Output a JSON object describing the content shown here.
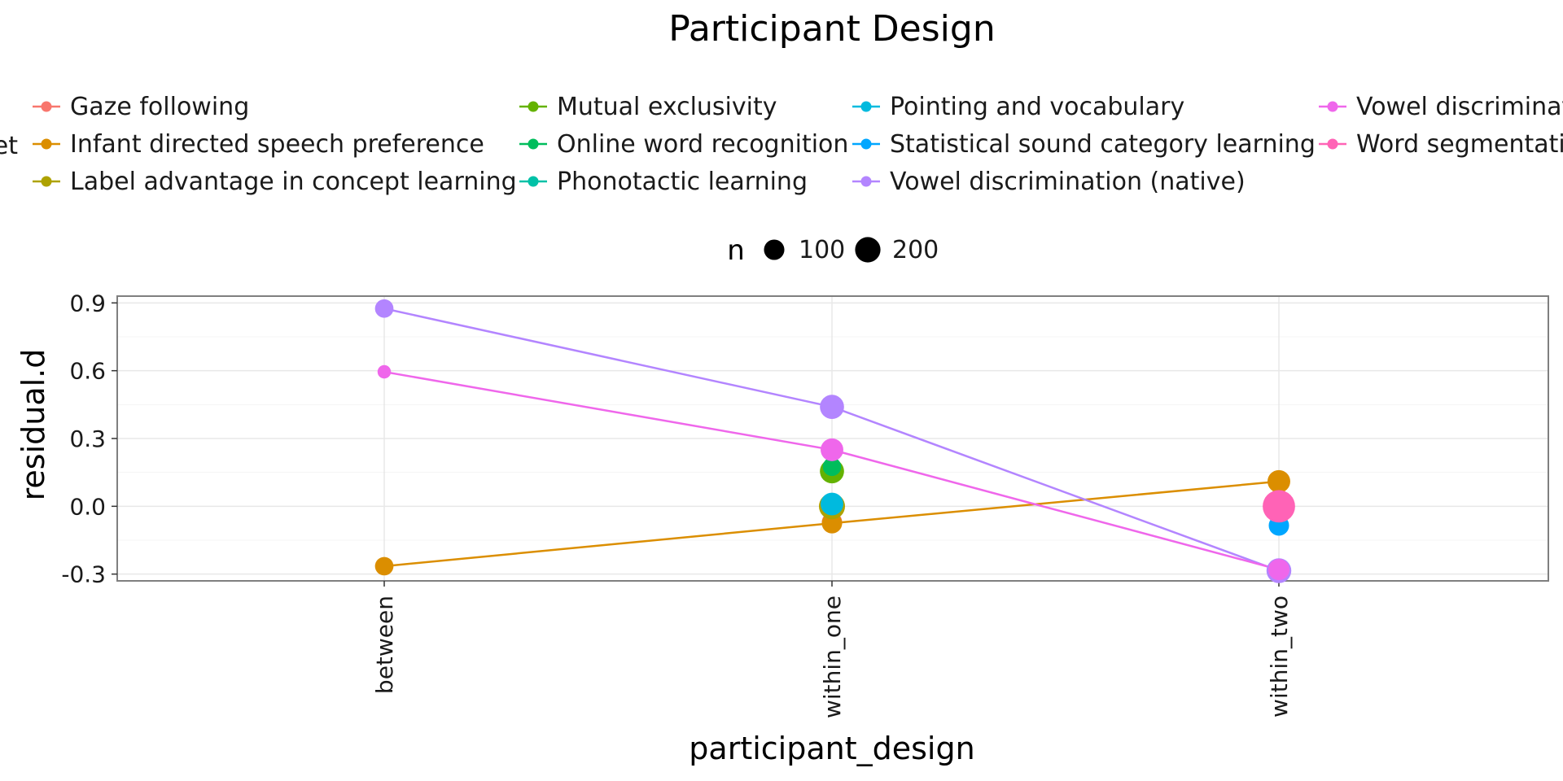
{
  "chart_data": {
    "type": "line",
    "title": "Participant Design",
    "xlabel": "participant_design",
    "ylabel": "residual.d",
    "categories": [
      "between",
      "within_one",
      "within_two"
    ],
    "ylim": [
      -0.33,
      0.93
    ],
    "yticks": [
      -0.3,
      0.0,
      0.3,
      0.6,
      0.9
    ],
    "ytick_labels": [
      "-0.3",
      "0.0",
      "0.3",
      "0.6",
      "0.9"
    ],
    "grid": true,
    "legend": {
      "title_fragment": "et",
      "placement": "top",
      "entries": [
        {
          "label": "Gaze following",
          "color": "#F8766D"
        },
        {
          "label": "Infant directed speech preference",
          "color": "#DB8E00"
        },
        {
          "label": "Label advantage in concept learning",
          "color": "#AEA200"
        },
        {
          "label": "Mutual exclusivity",
          "color": "#64B200"
        },
        {
          "label": "Online word recognition",
          "color": "#00BD5C"
        },
        {
          "label": "Phonotactic learning",
          "color": "#00C1A7"
        },
        {
          "label": "Pointing and vocabulary",
          "color": "#00BADE"
        },
        {
          "label": "Statistical sound category learning",
          "color": "#00A6FF"
        },
        {
          "label": "Vowel discrimination (native)",
          "color": "#B385FF"
        },
        {
          "label": "Vowel discriminat",
          "color": "#EF67EB"
        },
        {
          "label": "Word segmentati",
          "color": "#FF63B6"
        }
      ]
    },
    "size_legend": {
      "title": "n",
      "entries": [
        {
          "label": "100",
          "value": 100
        },
        {
          "label": "200",
          "value": 200
        }
      ]
    },
    "series": [
      {
        "color": "#F8766D",
        "points": [
          {
            "x": "within_one",
            "y": -0.07,
            "n": 80
          }
        ]
      },
      {
        "color": "#DB8E00",
        "points": [
          {
            "x": "between",
            "y": -0.265,
            "n": 60
          },
          {
            "x": "within_one",
            "y": -0.075,
            "n": 80
          },
          {
            "x": "within_two",
            "y": 0.11,
            "n": 110
          }
        ]
      },
      {
        "color": "#AEA200",
        "points": [
          {
            "x": "within_one",
            "y": 0.0,
            "n": 160
          }
        ]
      },
      {
        "color": "#64B200",
        "points": [
          {
            "x": "within_one",
            "y": 0.155,
            "n": 130
          }
        ]
      },
      {
        "color": "#00BD5C",
        "points": [
          {
            "x": "within_one",
            "y": 0.175,
            "n": 60
          }
        ]
      },
      {
        "color": "#00C1A7",
        "points": [
          {
            "x": "within_one",
            "y": 0.005,
            "n": 60
          }
        ]
      },
      {
        "color": "#00BADE",
        "points": [
          {
            "x": "within_one",
            "y": 0.01,
            "n": 110
          }
        ]
      },
      {
        "color": "#00A6FF",
        "points": [
          {
            "x": "within_two",
            "y": -0.085,
            "n": 80
          }
        ]
      },
      {
        "color": "#B385FF",
        "points": [
          {
            "x": "between",
            "y": 0.875,
            "n": 60
          },
          {
            "x": "within_one",
            "y": 0.44,
            "n": 130
          },
          {
            "x": "within_two",
            "y": -0.285,
            "n": 140
          }
        ]
      },
      {
        "color": "#EF67EB",
        "points": [
          {
            "x": "between",
            "y": 0.595,
            "n": 20
          },
          {
            "x": "within_one",
            "y": 0.25,
            "n": 110
          },
          {
            "x": "within_two",
            "y": -0.28,
            "n": 90
          }
        ]
      },
      {
        "color": "#FF63B6",
        "points": [
          {
            "x": "within_two",
            "y": 0.0,
            "n": 280
          }
        ]
      }
    ]
  }
}
